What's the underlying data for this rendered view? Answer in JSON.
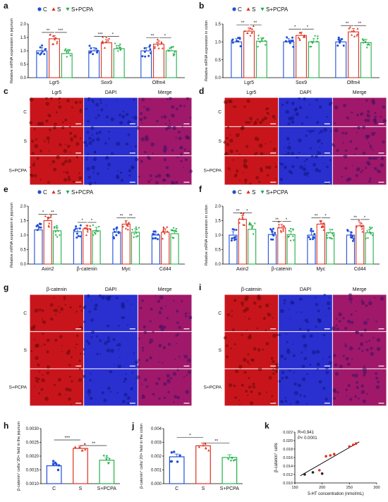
{
  "colors": {
    "C": "#1f4fd6",
    "S": "#e03020",
    "S+PCPA": "#22b04a",
    "red_stain": "#c8151b",
    "blue_stain": "#2a2fd0",
    "merge_stain": "#a0186a",
    "regression": "#000000"
  },
  "legend": {
    "entries": [
      {
        "symbol": "●",
        "label": "C"
      },
      {
        "symbol": "▲",
        "label": "S"
      },
      {
        "symbol": "▼",
        "label": "S+PCPA"
      }
    ]
  },
  "chart_data": [
    {
      "panel": "a",
      "type": "bar",
      "ylabel": "Relative mRNA expression in jejunum",
      "categories": [
        "Lgr5",
        "Sox9",
        "Olfm4"
      ],
      "groups": [
        "C",
        "S",
        "S+PCPA"
      ],
      "ylim": [
        0,
        2.0
      ],
      "yticks": [
        "0.0",
        "0.5",
        "1.0",
        "1.5",
        "2.0"
      ],
      "series": [
        {
          "name": "C",
          "values": [
            1.0,
            1.0,
            1.0
          ]
        },
        {
          "name": "S",
          "values": [
            1.45,
            1.3,
            1.25
          ]
        },
        {
          "name": "S+PCPA",
          "values": [
            0.9,
            1.08,
            1.0
          ]
        }
      ],
      "significance": [
        {
          "category": "Lgr5",
          "pairs": [
            "**",
            "***"
          ]
        },
        {
          "category": "Sox9",
          "pairs": [
            "***",
            "*"
          ]
        },
        {
          "category": "Olfm4",
          "pairs": [
            "**",
            "*"
          ]
        }
      ]
    },
    {
      "panel": "b",
      "type": "bar",
      "ylabel": "Relative mRNA expression in colon",
      "categories": [
        "Lgr5",
        "Sox9",
        "Olfm4"
      ],
      "groups": [
        "C",
        "S",
        "S+PCPA"
      ],
      "ylim": [
        0,
        1.5
      ],
      "yticks": [
        "0.0",
        "0.5",
        "1.0",
        "1.5"
      ],
      "series": [
        {
          "name": "C",
          "values": [
            1.0,
            1.0,
            1.0
          ]
        },
        {
          "name": "S",
          "values": [
            1.3,
            1.18,
            1.28
          ]
        },
        {
          "name": "S+PCPA",
          "values": [
            1.02,
            1.0,
            0.98
          ]
        }
      ],
      "significance": [
        {
          "category": "Lgr5",
          "pairs": [
            "**",
            "**"
          ]
        },
        {
          "category": "Sox9",
          "pairs": [
            "*",
            "*"
          ]
        },
        {
          "category": "Olfm4",
          "pairs": [
            "**",
            "**"
          ]
        }
      ]
    },
    {
      "panel": "e",
      "type": "bar",
      "ylabel": "Relative mRNA expression in jejunum",
      "categories": [
        "Axin2",
        "β-catenin",
        "Myc",
        "Cd44"
      ],
      "groups": [
        "C",
        "S",
        "S+PCPA"
      ],
      "ylim": [
        0,
        2.0
      ],
      "yticks": [
        "0.0",
        "0.5",
        "1.0",
        "1.5",
        "2.0"
      ],
      "series": [
        {
          "name": "C",
          "values": [
            1.18,
            1.12,
            1.1,
            1.0
          ]
        },
        {
          "name": "S",
          "values": [
            1.5,
            1.22,
            1.38,
            1.1
          ]
        },
        {
          "name": "S+PCPA",
          "values": [
            1.15,
            1.15,
            1.1,
            1.05
          ]
        }
      ],
      "significance": [
        {
          "category": "Axin2",
          "pairs": [
            "*",
            "**"
          ]
        },
        {
          "category": "β-catenin",
          "pairs": [
            "*",
            "*"
          ]
        },
        {
          "category": "Myc",
          "pairs": [
            "**",
            "**"
          ]
        },
        {
          "category": "Cd44",
          "pairs": [
            "",
            ""
          ]
        }
      ]
    },
    {
      "panel": "f",
      "type": "bar",
      "ylabel": "Relative mRNA expression in colon",
      "categories": [
        "Axin2",
        "β-catenin",
        "Myc",
        "Cd44"
      ],
      "groups": [
        "C",
        "S",
        "S+PCPA"
      ],
      "ylim": [
        0,
        2.0
      ],
      "yticks": [
        "0.0",
        "0.5",
        "1.0",
        "1.5",
        "2.0"
      ],
      "series": [
        {
          "name": "C",
          "values": [
            1.0,
            1.02,
            1.0,
            1.0
          ]
        },
        {
          "name": "S",
          "values": [
            1.55,
            1.25,
            1.38,
            1.32
          ]
        },
        {
          "name": "S+PCPA",
          "values": [
            1.2,
            1.02,
            1.08,
            1.08
          ]
        }
      ],
      "significance": [
        {
          "category": "Axin2",
          "pairs": [
            "**",
            "*"
          ]
        },
        {
          "category": "β-catenin",
          "pairs": [
            "**",
            "*"
          ]
        },
        {
          "category": "Myc",
          "pairs": [
            "**",
            "*"
          ]
        },
        {
          "category": "Cd44",
          "pairs": [
            "**",
            "*"
          ]
        }
      ]
    },
    {
      "panel": "h",
      "type": "bar",
      "ylabel": "β-catenin⁺ cells/ 20× field in the jejunum",
      "categories": [
        "C",
        "S",
        "S+PCPA"
      ],
      "ylim": [
        0.001,
        0.003
      ],
      "yticks": [
        "0.0010",
        "0.0015",
        "0.0020",
        "0.0025",
        "0.0030"
      ],
      "values": [
        0.00165,
        0.00228,
        0.00185
      ],
      "significance": [
        "***",
        "**"
      ]
    },
    {
      "panel": "j",
      "type": "bar",
      "ylabel": "β-catenin⁺ cells/ 20× field in the colon",
      "categories": [
        "C",
        "S",
        "S+PCPA"
      ],
      "ylim": [
        0,
        0.004
      ],
      "yticks": [
        "0.000",
        "0.001",
        "0.002",
        "0.003",
        "0.004"
      ],
      "values": [
        0.00195,
        0.00275,
        0.0019
      ],
      "significance": [
        "*",
        "**"
      ]
    },
    {
      "panel": "k",
      "type": "scatter",
      "xlabel": "5-HT concentration (nmol/mL)",
      "ylabel": "β-catenin⁺ cells",
      "xlim": [
        150,
        300
      ],
      "ylim": [
        0.01,
        0.022
      ],
      "xticks": [
        "150",
        "200",
        "250",
        "300"
      ],
      "yticks": [
        "0.010",
        "0.012",
        "0.014",
        "0.016",
        "0.018",
        "0.020",
        "0.022"
      ],
      "points_black": [
        [
          168,
          0.012
        ],
        [
          183,
          0.0125
        ],
        [
          200,
          0.0122
        ]
      ],
      "points_red": [
        [
          195,
          0.013
        ],
        [
          207,
          0.0163
        ],
        [
          215,
          0.0165
        ],
        [
          222,
          0.0168
        ],
        [
          250,
          0.0186
        ],
        [
          257,
          0.019
        ],
        [
          262,
          0.0193
        ]
      ],
      "annotation": [
        "R=0.941",
        "P< 0.0001"
      ]
    }
  ],
  "micrographs": [
    {
      "panel": "c",
      "columns": [
        "Lgr5",
        "DAPI",
        "Merge"
      ],
      "rows": [
        "C",
        "S",
        "S+PCPA"
      ]
    },
    {
      "panel": "d",
      "columns": [
        "Lgr5",
        "DAPI",
        "Merge"
      ],
      "rows": [
        "C",
        "S",
        "S+PCPA"
      ]
    },
    {
      "panel": "g",
      "columns": [
        "β-catenin",
        "DAPI",
        "Merge"
      ],
      "rows": [
        "C",
        "S",
        "S+PCPA"
      ]
    },
    {
      "panel": "i",
      "columns": [
        "β-catenin",
        "DAPI",
        "Merge"
      ],
      "rows": [
        "C",
        "S",
        "S+PCPA"
      ]
    }
  ],
  "panel_letters": [
    "a",
    "b",
    "c",
    "d",
    "e",
    "f",
    "g",
    "h",
    "i",
    "j",
    "k"
  ]
}
